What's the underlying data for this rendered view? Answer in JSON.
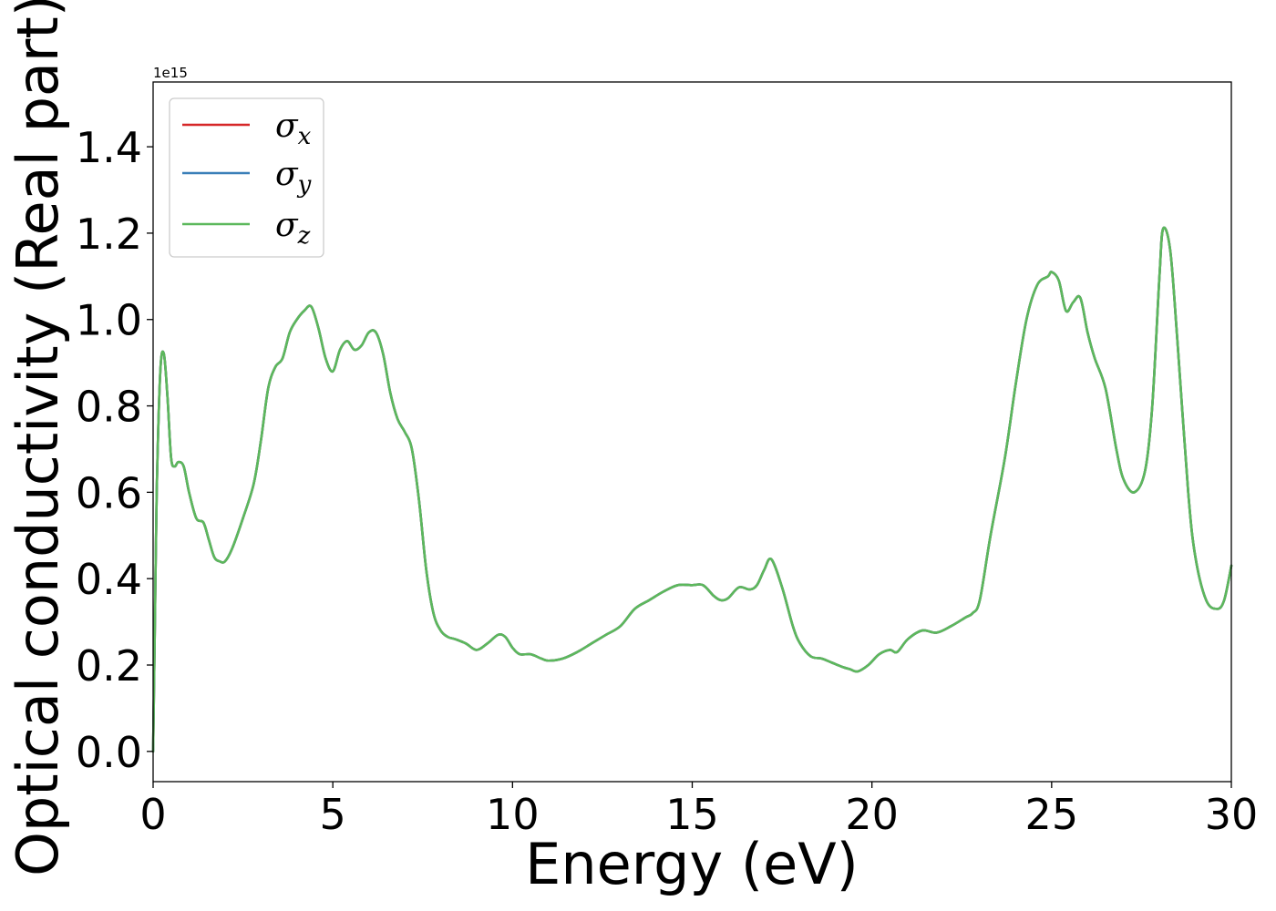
{
  "chart_data": {
    "type": "line",
    "title": "",
    "xlabel": "Energy (eV)",
    "ylabel": "Optical conductivity (Real part)",
    "y_offset_label": "1e15",
    "xlim": [
      0,
      30
    ],
    "ylim": [
      -0.07,
      1.55
    ],
    "x_ticks": [
      0,
      5,
      10,
      15,
      20,
      25,
      30
    ],
    "x_tick_labels": [
      "0",
      "5",
      "10",
      "15",
      "20",
      "25",
      "30"
    ],
    "y_ticks": [
      0.0,
      0.2,
      0.4,
      0.6,
      0.8,
      1.0,
      1.2,
      1.4
    ],
    "y_tick_labels": [
      "0.0",
      "0.2",
      "0.4",
      "0.6",
      "0.8",
      "1.0",
      "1.2",
      "1.4"
    ],
    "grid": false,
    "legend_position": "top-left",
    "x": [
      0.0,
      0.05,
      0.1,
      0.2,
      0.3,
      0.4,
      0.5,
      0.6,
      0.7,
      0.85,
      1.0,
      1.2,
      1.4,
      1.55,
      1.7,
      1.85,
      2.0,
      2.2,
      2.5,
      2.8,
      3.0,
      3.2,
      3.4,
      3.6,
      3.8,
      4.0,
      4.2,
      4.4,
      4.6,
      4.8,
      5.0,
      5.2,
      5.4,
      5.6,
      5.8,
      6.0,
      6.2,
      6.4,
      6.6,
      6.8,
      7.0,
      7.2,
      7.4,
      7.6,
      7.8,
      8.0,
      8.2,
      8.4,
      8.7,
      9.0,
      9.3,
      9.6,
      9.8,
      10.0,
      10.2,
      10.5,
      10.8,
      11.0,
      11.4,
      11.8,
      12.2,
      12.6,
      13.0,
      13.4,
      13.8,
      14.2,
      14.6,
      15.0,
      15.3,
      15.6,
      15.8,
      16.0,
      16.3,
      16.6,
      16.8,
      17.0,
      17.2,
      17.5,
      17.8,
      18.0,
      18.3,
      18.6,
      18.9,
      19.2,
      19.4,
      19.6,
      19.9,
      20.2,
      20.5,
      20.7,
      21.0,
      21.4,
      21.8,
      22.2,
      22.6,
      22.8,
      23.0,
      23.3,
      23.7,
      24.0,
      24.3,
      24.6,
      24.9,
      25.0,
      25.2,
      25.4,
      25.6,
      25.8,
      26.0,
      26.2,
      26.5,
      26.8,
      27.0,
      27.3,
      27.6,
      27.8,
      28.0,
      28.1,
      28.3,
      28.5,
      28.8,
      29.0,
      29.3,
      29.6,
      29.8,
      30.0
    ],
    "colors": {
      "sigma_x": "#d62728",
      "sigma_y": "#3a7fb8",
      "sigma_z": "#5cb85c"
    },
    "series": [
      {
        "name": "σx",
        "label_base": "σ",
        "label_sub": "x",
        "color_key": "sigma_x",
        "values": [
          0.0,
          0.3,
          0.6,
          0.88,
          0.92,
          0.82,
          0.68,
          0.66,
          0.67,
          0.66,
          0.6,
          0.54,
          0.53,
          0.49,
          0.45,
          0.44,
          0.44,
          0.47,
          0.54,
          0.62,
          0.72,
          0.84,
          0.89,
          0.91,
          0.97,
          1.0,
          1.02,
          1.03,
          0.98,
          0.91,
          0.88,
          0.93,
          0.95,
          0.93,
          0.94,
          0.97,
          0.97,
          0.92,
          0.83,
          0.77,
          0.74,
          0.7,
          0.58,
          0.42,
          0.32,
          0.28,
          0.265,
          0.26,
          0.25,
          0.235,
          0.25,
          0.27,
          0.265,
          0.24,
          0.225,
          0.225,
          0.215,
          0.21,
          0.215,
          0.23,
          0.25,
          0.27,
          0.29,
          0.33,
          0.35,
          0.37,
          0.385,
          0.385,
          0.385,
          0.36,
          0.35,
          0.355,
          0.38,
          0.375,
          0.385,
          0.42,
          0.445,
          0.38,
          0.29,
          0.25,
          0.22,
          0.215,
          0.205,
          0.195,
          0.19,
          0.185,
          0.2,
          0.225,
          0.235,
          0.23,
          0.26,
          0.28,
          0.275,
          0.29,
          0.31,
          0.32,
          0.35,
          0.5,
          0.68,
          0.85,
          1.0,
          1.08,
          1.1,
          1.11,
          1.09,
          1.02,
          1.04,
          1.05,
          0.97,
          0.91,
          0.84,
          0.7,
          0.63,
          0.6,
          0.65,
          0.8,
          1.1,
          1.21,
          1.16,
          0.95,
          0.6,
          0.45,
          0.35,
          0.33,
          0.35,
          0.43
        ]
      },
      {
        "name": "σy",
        "label_base": "σ",
        "label_sub": "y",
        "color_key": "sigma_y",
        "values": [
          0.0,
          0.3,
          0.6,
          0.88,
          0.92,
          0.82,
          0.68,
          0.66,
          0.67,
          0.66,
          0.6,
          0.54,
          0.53,
          0.49,
          0.45,
          0.44,
          0.44,
          0.47,
          0.54,
          0.62,
          0.72,
          0.84,
          0.89,
          0.91,
          0.97,
          1.0,
          1.02,
          1.03,
          0.98,
          0.91,
          0.88,
          0.93,
          0.95,
          0.93,
          0.94,
          0.97,
          0.97,
          0.92,
          0.83,
          0.77,
          0.74,
          0.7,
          0.58,
          0.42,
          0.32,
          0.28,
          0.265,
          0.26,
          0.25,
          0.235,
          0.25,
          0.27,
          0.265,
          0.24,
          0.225,
          0.225,
          0.215,
          0.21,
          0.215,
          0.23,
          0.25,
          0.27,
          0.29,
          0.33,
          0.35,
          0.37,
          0.385,
          0.385,
          0.385,
          0.36,
          0.35,
          0.355,
          0.38,
          0.375,
          0.385,
          0.42,
          0.445,
          0.38,
          0.29,
          0.25,
          0.22,
          0.215,
          0.205,
          0.195,
          0.19,
          0.185,
          0.2,
          0.225,
          0.235,
          0.23,
          0.26,
          0.28,
          0.275,
          0.29,
          0.31,
          0.32,
          0.35,
          0.5,
          0.68,
          0.85,
          1.0,
          1.08,
          1.1,
          1.11,
          1.09,
          1.02,
          1.04,
          1.05,
          0.97,
          0.91,
          0.84,
          0.7,
          0.63,
          0.6,
          0.65,
          0.8,
          1.1,
          1.21,
          1.16,
          0.95,
          0.6,
          0.45,
          0.35,
          0.33,
          0.35,
          0.43
        ]
      },
      {
        "name": "σz",
        "label_base": "σ",
        "label_sub": "z",
        "color_key": "sigma_z",
        "values": [
          0.0,
          0.3,
          0.6,
          0.88,
          0.92,
          0.82,
          0.68,
          0.66,
          0.67,
          0.66,
          0.6,
          0.54,
          0.53,
          0.49,
          0.45,
          0.44,
          0.44,
          0.47,
          0.54,
          0.62,
          0.72,
          0.84,
          0.89,
          0.91,
          0.97,
          1.0,
          1.02,
          1.03,
          0.98,
          0.91,
          0.88,
          0.93,
          0.95,
          0.93,
          0.94,
          0.97,
          0.97,
          0.92,
          0.83,
          0.77,
          0.74,
          0.7,
          0.58,
          0.42,
          0.32,
          0.28,
          0.265,
          0.26,
          0.25,
          0.235,
          0.25,
          0.27,
          0.265,
          0.24,
          0.225,
          0.225,
          0.215,
          0.21,
          0.215,
          0.23,
          0.25,
          0.27,
          0.29,
          0.33,
          0.35,
          0.37,
          0.385,
          0.385,
          0.385,
          0.36,
          0.35,
          0.355,
          0.38,
          0.375,
          0.385,
          0.42,
          0.445,
          0.38,
          0.29,
          0.25,
          0.22,
          0.215,
          0.205,
          0.195,
          0.19,
          0.185,
          0.2,
          0.225,
          0.235,
          0.23,
          0.26,
          0.28,
          0.275,
          0.29,
          0.31,
          0.32,
          0.35,
          0.5,
          0.68,
          0.85,
          1.0,
          1.08,
          1.1,
          1.11,
          1.09,
          1.02,
          1.04,
          1.05,
          0.97,
          0.91,
          0.84,
          0.7,
          0.63,
          0.6,
          0.65,
          0.8,
          1.1,
          1.21,
          1.16,
          0.95,
          0.6,
          0.45,
          0.35,
          0.33,
          0.35,
          0.43
        ]
      }
    ]
  }
}
